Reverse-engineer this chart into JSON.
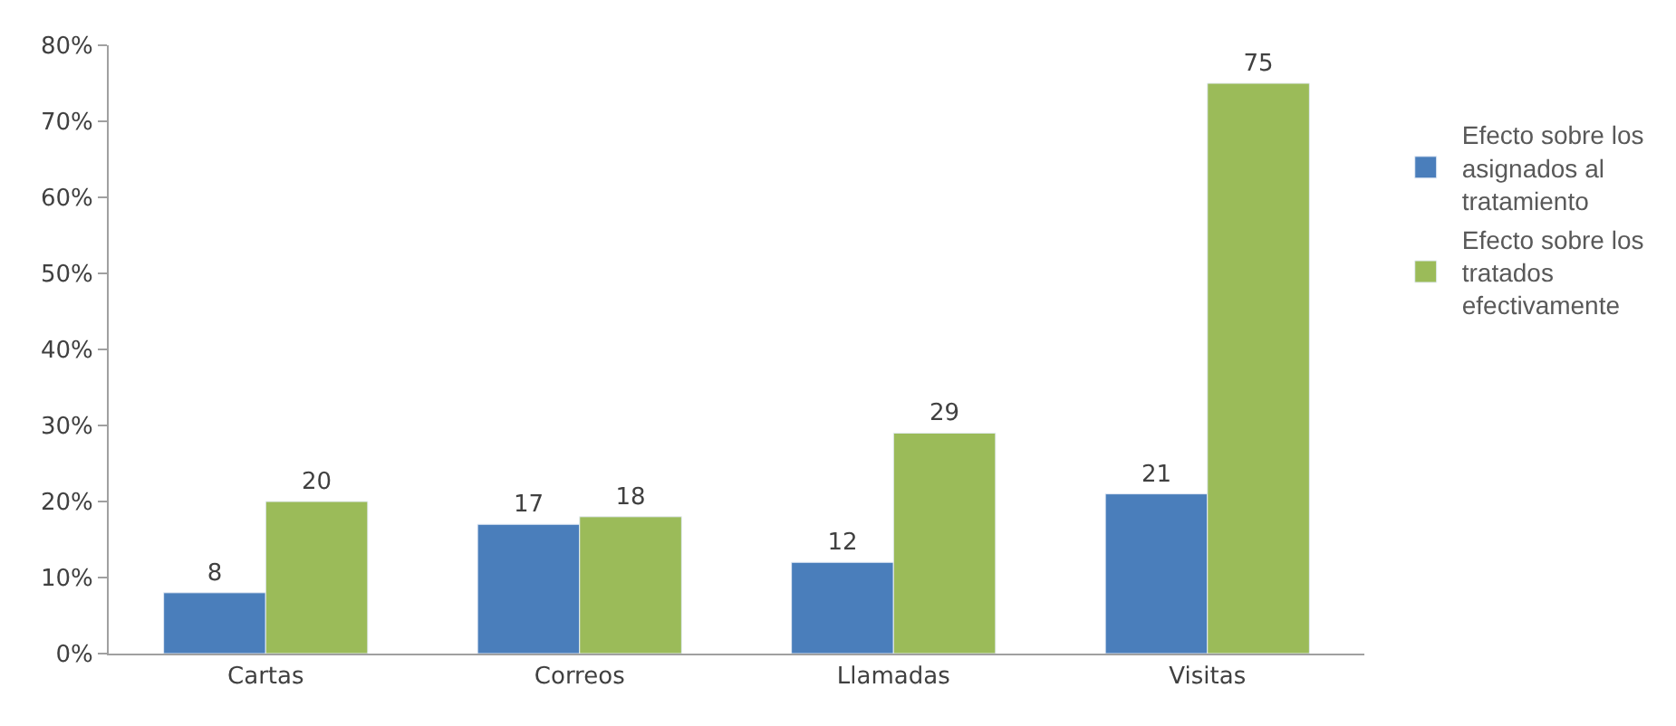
{
  "chart_data": {
    "type": "bar",
    "categories": [
      "Cartas",
      "Correos",
      "Llamadas",
      "Visitas"
    ],
    "series": [
      {
        "name": "Efecto sobre los asignados al tratamiento",
        "color": "#4a7ebb",
        "values": [
          8,
          17,
          12,
          21
        ]
      },
      {
        "name": "Efecto sobre los tratados efectivamente",
        "color": "#9bbb59",
        "values": [
          20,
          18,
          29,
          75
        ]
      }
    ],
    "ylim": [
      0,
      80
    ],
    "yticks": [
      {
        "value": 0,
        "label": "0%"
      },
      {
        "value": 10,
        "label": "10%"
      },
      {
        "value": 20,
        "label": "20%"
      },
      {
        "value": 30,
        "label": "30%"
      },
      {
        "value": 40,
        "label": "40%"
      },
      {
        "value": 50,
        "label": "50%"
      },
      {
        "value": 60,
        "label": "60%"
      },
      {
        "value": 70,
        "label": "70%"
      },
      {
        "value": 80,
        "label": "80%"
      }
    ],
    "data_labels": true,
    "legend": "right"
  }
}
